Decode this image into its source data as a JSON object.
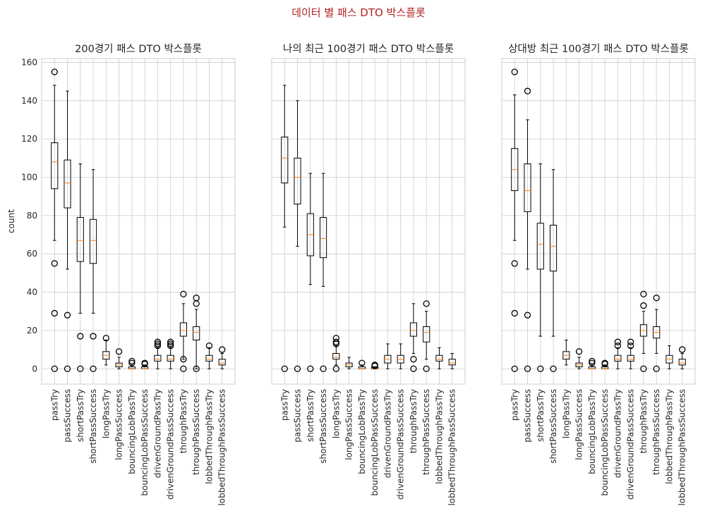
{
  "suptitle": "데이터 별 패스 DTO 박스플롯",
  "colors": {
    "title": "#b22222",
    "box": "#000000",
    "median": "#ff7f0e",
    "grid": "#cccccc",
    "axes_edge": "#cccccc",
    "background": "#ffffff"
  },
  "chart_data": [
    {
      "type": "box",
      "title": "200경기 패스 DTO 박스플롯",
      "ylabel": "count",
      "xlabel": "",
      "ylim": [
        -8,
        162
      ],
      "yticks": [
        0,
        20,
        40,
        60,
        80,
        100,
        120,
        140,
        160
      ],
      "grid": true,
      "categories": [
        "passTry",
        "passSuccess",
        "shortPassTry",
        "shortPassSuccess",
        "longPassTry",
        "longPassSuccess",
        "bouncingLobPassTry",
        "bouncingLobPassSuccess",
        "drivenGroundPassTry",
        "drivenGroundPassSuccess",
        "throughPassTry",
        "throughPassSuccess",
        "lobbedThroughPassTry",
        "lobbedThroughPassSuccess"
      ],
      "boxes": [
        {
          "whislo": 67,
          "q1": 94,
          "med": 108,
          "q3": 118,
          "whishi": 148,
          "fliers": [
            155,
            55,
            29,
            0
          ]
        },
        {
          "whislo": 52,
          "q1": 84,
          "med": 97,
          "q3": 109,
          "whishi": 145,
          "fliers": [
            28,
            0
          ]
        },
        {
          "whislo": 29,
          "q1": 56,
          "med": 67,
          "q3": 79,
          "whishi": 107,
          "fliers": [
            17,
            0
          ]
        },
        {
          "whislo": 29,
          "q1": 55,
          "med": 67,
          "q3": 78,
          "whishi": 104,
          "fliers": [
            17,
            0
          ]
        },
        {
          "whislo": 2,
          "q1": 5,
          "med": 7,
          "q3": 9,
          "whishi": 15,
          "fliers": [
            16
          ]
        },
        {
          "whislo": 0,
          "q1": 1,
          "med": 2,
          "q3": 3,
          "whishi": 6,
          "fliers": [
            9
          ]
        },
        {
          "whislo": 0,
          "q1": 0,
          "med": 0,
          "q3": 1,
          "whishi": 2,
          "fliers": [
            3,
            4
          ]
        },
        {
          "whislo": 0,
          "q1": 0,
          "med": 0,
          "q3": 1,
          "whishi": 2,
          "fliers": [
            2.5,
            3
          ]
        },
        {
          "whislo": 0,
          "q1": 4,
          "med": 5,
          "q3": 7,
          "whishi": 11,
          "fliers": [
            12,
            13,
            14
          ]
        },
        {
          "whislo": 0,
          "q1": 4,
          "med": 5,
          "q3": 7,
          "whishi": 11,
          "fliers": [
            12,
            13,
            14
          ]
        },
        {
          "whislo": 5,
          "q1": 17,
          "med": 20,
          "q3": 24,
          "whishi": 34,
          "fliers": [
            39,
            5,
            0
          ]
        },
        {
          "whislo": 0,
          "q1": 15,
          "med": 19,
          "q3": 22,
          "whishi": 31,
          "fliers": [
            37,
            34,
            0
          ]
        },
        {
          "whislo": 0,
          "q1": 4,
          "med": 5,
          "q3": 7,
          "whishi": 11,
          "fliers": [
            12
          ]
        },
        {
          "whislo": 0,
          "q1": 2,
          "med": 3,
          "q3": 5,
          "whishi": 8,
          "fliers": [
            10
          ]
        }
      ]
    },
    {
      "type": "box",
      "title": "나의 최근 100경기 패스 DTO 박스플롯",
      "ylim": [
        -8,
        162
      ],
      "yticks": [
        0,
        20,
        40,
        60,
        80,
        100,
        120,
        140,
        160
      ],
      "grid": true,
      "categories": [
        "passTry",
        "passSuccess",
        "shortPassTry",
        "shortPassSuccess",
        "longPassTry",
        "longPassSuccess",
        "bouncingLobPassTry",
        "bouncingLobPassSuccess",
        "drivenGroundPassTry",
        "drivenGroundPassSuccess",
        "throughPassTry",
        "throughPassSuccess",
        "lobbedThroughPassTry",
        "lobbedThroughPassSuccess"
      ],
      "boxes": [
        {
          "whislo": 74,
          "q1": 97,
          "med": 110,
          "q3": 121,
          "whishi": 148,
          "fliers": [
            0
          ]
        },
        {
          "whislo": 64,
          "q1": 86,
          "med": 100,
          "q3": 110,
          "whishi": 140,
          "fliers": [
            0
          ]
        },
        {
          "whislo": 44,
          "q1": 59,
          "med": 70,
          "q3": 81,
          "whishi": 102,
          "fliers": [
            0
          ]
        },
        {
          "whislo": 43,
          "q1": 58,
          "med": 68,
          "q3": 79,
          "whishi": 102,
          "fliers": [
            0
          ]
        },
        {
          "whislo": 2,
          "q1": 5,
          "med": 6,
          "q3": 8,
          "whishi": 12,
          "fliers": [
            13,
            14,
            16,
            0
          ]
        },
        {
          "whislo": 0,
          "q1": 1,
          "med": 2,
          "q3": 3,
          "whishi": 6,
          "fliers": []
        },
        {
          "whislo": 0,
          "q1": 0,
          "med": 0,
          "q3": 1,
          "whishi": 2,
          "fliers": [
            3
          ]
        },
        {
          "whislo": 0,
          "q1": 0,
          "med": 0,
          "q3": 1,
          "whishi": 1,
          "fliers": [
            2,
            1.5
          ]
        },
        {
          "whislo": 0,
          "q1": 3,
          "med": 5,
          "q3": 7,
          "whishi": 13,
          "fliers": []
        },
        {
          "whislo": 0,
          "q1": 3,
          "med": 5,
          "q3": 7,
          "whishi": 13,
          "fliers": []
        },
        {
          "whislo": 8,
          "q1": 17,
          "med": 20,
          "q3": 24,
          "whishi": 34,
          "fliers": [
            5,
            0
          ]
        },
        {
          "whislo": 5,
          "q1": 14,
          "med": 19,
          "q3": 22,
          "whishi": 30,
          "fliers": [
            34,
            0
          ]
        },
        {
          "whislo": 0,
          "q1": 4,
          "med": 5,
          "q3": 7,
          "whishi": 11,
          "fliers": []
        },
        {
          "whislo": 0,
          "q1": 2,
          "med": 3,
          "q3": 5,
          "whishi": 8,
          "fliers": []
        }
      ]
    },
    {
      "type": "box",
      "title": "상대방 최근 100경기 패스 DTO 박스플롯",
      "ylim": [
        -8,
        162
      ],
      "yticks": [
        0,
        20,
        40,
        60,
        80,
        100,
        120,
        140,
        160
      ],
      "grid": true,
      "categories": [
        "passTry",
        "passSuccess",
        "shortPassTry",
        "shortPassSuccess",
        "longPassTry",
        "longPassSuccess",
        "bouncingLobPassTry",
        "bouncingLobPassSuccess",
        "drivenGroundPassTry",
        "drivenGroundPassSuccess",
        "throughPassTry",
        "throughPassSuccess",
        "lobbedThroughPassTry",
        "lobbedThroughPassSuccess"
      ],
      "boxes": [
        {
          "whislo": 67,
          "q1": 93,
          "med": 104,
          "q3": 115,
          "whishi": 143,
          "fliers": [
            155,
            55,
            29,
            0
          ]
        },
        {
          "whislo": 52,
          "q1": 82,
          "med": 93,
          "q3": 107,
          "whishi": 130,
          "fliers": [
            145,
            28,
            0
          ]
        },
        {
          "whislo": 17,
          "q1": 52,
          "med": 65,
          "q3": 76,
          "whishi": 107,
          "fliers": [
            0
          ]
        },
        {
          "whislo": 17,
          "q1": 51,
          "med": 64,
          "q3": 75,
          "whishi": 104,
          "fliers": [
            0
          ]
        },
        {
          "whislo": 2,
          "q1": 5,
          "med": 7,
          "q3": 9,
          "whishi": 15,
          "fliers": []
        },
        {
          "whislo": 0,
          "q1": 1,
          "med": 2,
          "q3": 3,
          "whishi": 6,
          "fliers": [
            9
          ]
        },
        {
          "whislo": 0,
          "q1": 0,
          "med": 0,
          "q3": 1,
          "whishi": 2,
          "fliers": [
            3,
            4
          ]
        },
        {
          "whislo": 0,
          "q1": 0,
          "med": 0,
          "q3": 1,
          "whishi": 2,
          "fliers": [
            2.5,
            3
          ]
        },
        {
          "whislo": 0,
          "q1": 4,
          "med": 5,
          "q3": 7,
          "whishi": 11,
          "fliers": [
            12,
            14
          ]
        },
        {
          "whislo": 0,
          "q1": 4,
          "med": 5,
          "q3": 7,
          "whishi": 11,
          "fliers": [
            12,
            14
          ]
        },
        {
          "whislo": 8,
          "q1": 17,
          "med": 20,
          "q3": 23,
          "whishi": 30,
          "fliers": [
            39,
            33,
            0
          ]
        },
        {
          "whislo": 8,
          "q1": 16,
          "med": 19,
          "q3": 22,
          "whishi": 31,
          "fliers": [
            37,
            0
          ]
        },
        {
          "whislo": 0,
          "q1": 3,
          "med": 5,
          "q3": 7,
          "whishi": 12,
          "fliers": []
        },
        {
          "whislo": 0,
          "q1": 2,
          "med": 3,
          "q3": 5,
          "whishi": 8,
          "fliers": [
            10
          ]
        }
      ]
    }
  ]
}
